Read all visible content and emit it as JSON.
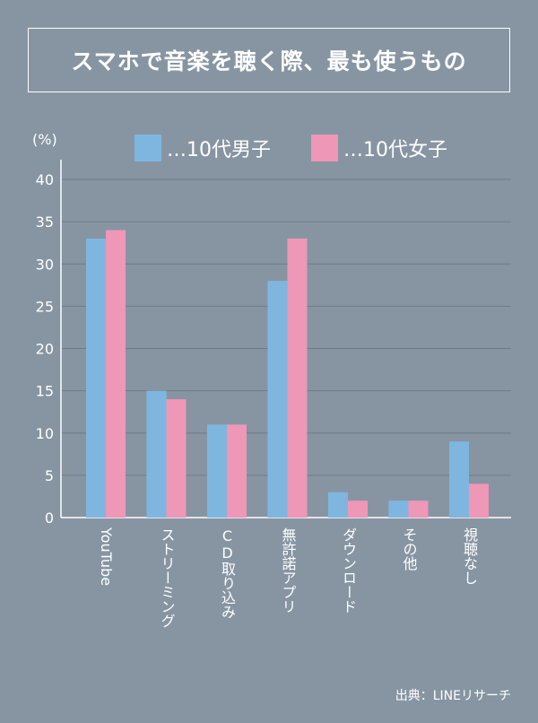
{
  "title": "スマホで音楽を聴く際、最も使うもの",
  "source": "出典：LINEリサーチ",
  "chart_data": {
    "type": "bar",
    "title": "スマホで音楽を聴く際、最も使うもの",
    "ylabel": "(%)",
    "xlabel": "",
    "ylim": [
      0,
      40
    ],
    "yticks": [
      0,
      5,
      10,
      15,
      20,
      25,
      30,
      35,
      40
    ],
    "grid": true,
    "legend_position": "top",
    "categories": [
      "YouTube",
      "ストリーミング",
      "CD取り込み",
      "無許諾アプリ",
      "ダウンロード",
      "その他",
      "視聴なし"
    ],
    "series": [
      {
        "name": "…10代男子",
        "color": "#7fb6e0",
        "values": [
          33,
          15,
          11,
          28,
          3,
          2,
          9
        ]
      },
      {
        "name": "…10代女子",
        "color": "#ee97b7",
        "values": [
          34,
          14,
          11,
          33,
          2,
          2,
          4
        ]
      }
    ]
  }
}
